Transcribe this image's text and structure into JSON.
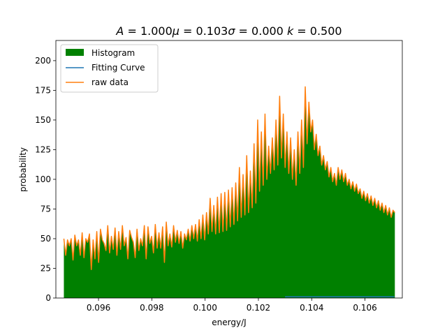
{
  "chart_data": {
    "type": "area",
    "title": "A = 1.000μ = 0.103σ = 0.000 k = 0.500",
    "title_parts": {
      "a_var": "A",
      "a_val": " = 1.000",
      "mu_var": "μ",
      "mu_val": " = 0.103",
      "sigma_var": "σ",
      "sigma_val": " = 0.000 ",
      "k_var": "k",
      "k_val": " = 0.500"
    },
    "xlabel": "energy/J",
    "ylabel": "probability",
    "xlim": [
      0.0944,
      0.1074
    ],
    "ylim": [
      0,
      217
    ],
    "x_ticks": [
      0.096,
      0.098,
      0.1,
      0.102,
      0.104,
      0.106
    ],
    "x_tick_labels": [
      "0.096",
      "0.098",
      "0.100",
      "0.102",
      "0.104",
      "0.106"
    ],
    "y_ticks": [
      0,
      25,
      50,
      75,
      100,
      125,
      150,
      175,
      200
    ],
    "y_tick_labels": [
      "0",
      "25",
      "50",
      "75",
      "100",
      "125",
      "150",
      "175",
      "200"
    ],
    "grid": false,
    "legend": {
      "position": "top-left",
      "entries": [
        {
          "label": "Histogram",
          "color": "#008000",
          "kind": "patch"
        },
        {
          "label": "Fitting Curve",
          "color": "#1f77b4",
          "kind": "line"
        },
        {
          "label": "raw data",
          "color": "#ff7f0e",
          "kind": "line"
        }
      ]
    },
    "series": [
      {
        "name": "Histogram",
        "kind": "filled-step",
        "color": "#008000",
        "x_start": 0.0947,
        "x_end": 0.10712,
        "values": [
          50,
          36,
          49,
          44,
          50,
          32,
          53,
          44,
          49,
          36,
          55,
          34,
          50,
          47,
          54,
          24,
          49,
          33,
          56,
          30,
          58,
          49,
          46,
          40,
          61,
          38,
          52,
          41,
          59,
          36,
          56,
          41,
          61,
          44,
          51,
          33,
          57,
          51,
          47,
          34,
          58,
          40,
          50,
          44,
          61,
          33,
          60,
          46,
          52,
          38,
          62,
          42,
          55,
          42,
          60,
          30,
          64,
          44,
          54,
          43,
          61,
          47,
          57,
          46,
          56,
          42,
          54,
          49,
          58,
          48,
          61,
          50,
          62,
          48,
          66,
          50,
          70,
          49,
          72,
          54,
          84,
          56,
          78,
          54,
          85,
          55,
          88,
          56,
          89,
          57,
          91,
          60,
          93,
          62,
          97,
          65,
          110,
          68,
          104,
          70,
          120,
          72,
          107,
          76,
          130,
          80,
          150,
          90,
          140,
          95,
          155,
          100,
          128,
          105,
          135,
          108,
          150,
          112,
          170,
          118,
          155,
          110,
          140,
          105,
          135,
          100,
          125,
          95,
          140,
          105,
          150,
          110,
          178,
          130,
          165,
          140,
          150,
          125,
          138,
          120,
          128,
          112,
          120,
          108,
          115,
          102,
          110,
          98,
          105,
          95,
          110,
          100,
          108,
          98,
          105,
          95,
          100,
          92,
          98,
          90,
          96,
          88,
          92,
          84,
          90,
          82,
          88,
          80,
          86,
          78,
          84,
          76,
          82,
          74,
          80,
          72,
          78,
          70,
          76,
          68,
          74,
          72
        ]
      },
      {
        "name": "raw data",
        "kind": "line",
        "color": "#ff7f0e",
        "same_as": "Histogram"
      },
      {
        "name": "Fitting Curve",
        "kind": "line",
        "color": "#1f77b4",
        "x": [
          0.103,
          0.1071
        ],
        "y": [
          1,
          1
        ]
      }
    ]
  }
}
